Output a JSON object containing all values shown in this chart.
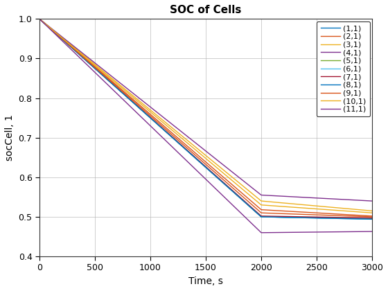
{
  "title": "SOC of Cells",
  "xlabel": "Time, s",
  "ylabel": "socCell, 1",
  "xlim": [
    0,
    3000
  ],
  "ylim": [
    0.4,
    1.0
  ],
  "xticks": [
    0,
    500,
    1000,
    1500,
    2000,
    2500,
    3000
  ],
  "yticks": [
    0.4,
    0.5,
    0.6,
    0.7,
    0.8,
    0.9,
    1.0
  ],
  "lines": [
    {
      "label": "(1,1)",
      "color": "#0072BD",
      "x": [
        0,
        2000,
        3000
      ],
      "y": [
        1.0,
        0.5,
        0.495
      ]
    },
    {
      "label": "(2,1)",
      "color": "#D95319",
      "x": [
        0,
        2000,
        3000
      ],
      "y": [
        1.0,
        0.518,
        0.502
      ]
    },
    {
      "label": "(3,1)",
      "color": "#EDB120",
      "x": [
        0,
        2000,
        3000
      ],
      "y": [
        1.0,
        0.54,
        0.515
      ]
    },
    {
      "label": "(4,1)",
      "color": "#7E2F8E",
      "x": [
        0,
        2000,
        3000
      ],
      "y": [
        1.0,
        0.555,
        0.54
      ]
    },
    {
      "label": "(5,1)",
      "color": "#77AC30",
      "x": [
        0,
        2000,
        3000
      ],
      "y": [
        1.0,
        0.5,
        0.495
      ]
    },
    {
      "label": "(6,1)",
      "color": "#4DBEEE",
      "x": [
        0,
        2000,
        3000
      ],
      "y": [
        1.0,
        0.5,
        0.494
      ]
    },
    {
      "label": "(7,1)",
      "color": "#A2142F",
      "x": [
        0,
        2000,
        3000
      ],
      "y": [
        1.0,
        0.502,
        0.497
      ]
    },
    {
      "label": "(8,1)",
      "color": "#0072BD",
      "x": [
        0,
        2000,
        3000
      ],
      "y": [
        1.0,
        0.5,
        0.494
      ]
    },
    {
      "label": "(9,1)",
      "color": "#D95319",
      "x": [
        0,
        2000,
        3000
      ],
      "y": [
        1.0,
        0.51,
        0.5
      ]
    },
    {
      "label": "(10,1)",
      "color": "#EDB120",
      "x": [
        0,
        2000,
        3000
      ],
      "y": [
        1.0,
        0.53,
        0.51
      ]
    },
    {
      "label": "(11,1)",
      "color": "#7E2F8E",
      "x": [
        0,
        2000,
        3000
      ],
      "y": [
        1.0,
        0.46,
        0.463
      ]
    }
  ],
  "figsize": [
    5.6,
    4.2
  ],
  "dpi": 100,
  "background_color": "#ffffff",
  "grid_color": "#b0b0b0"
}
